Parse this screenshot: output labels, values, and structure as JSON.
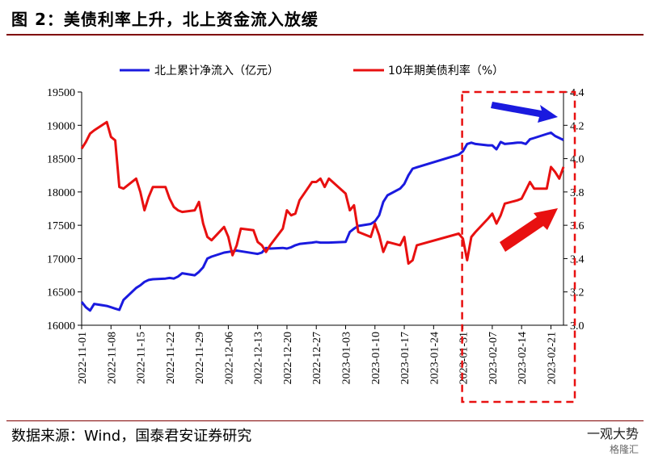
{
  "header": {
    "title": "图 2：美债利率上升，北上资金流入放缓"
  },
  "footer": {
    "source": "数据来源：Wind，国泰君安证券研究",
    "brand": "一观大势",
    "brand2": "格隆汇"
  },
  "colors": {
    "north": "#1a1adf",
    "yield": "#e81010",
    "highlight": "#e81010",
    "arrow_blue": "#1a1adf",
    "arrow_red": "#e81010"
  },
  "chart_data": {
    "type": "line",
    "legend": [
      "北上累计净流入（亿元）",
      "10年期美债利率（%）"
    ],
    "legend_position": "top",
    "x_ticks": [
      "2022-11-01",
      "2022-11-08",
      "2022-11-15",
      "2022-11-22",
      "2022-11-29",
      "2022-12-06",
      "2022-12-13",
      "2022-12-20",
      "2022-12-27",
      "2023-01-03",
      "2023-01-10",
      "2023-01-17",
      "2023-01-24",
      "2023-01-31",
      "2023-02-07",
      "2023-02-14",
      "2023-02-21"
    ],
    "y_left": {
      "min": 16000,
      "max": 19500,
      "ticks": [
        "16000",
        "16500",
        "17000",
        "17500",
        "18000",
        "18500",
        "19000",
        "19500"
      ]
    },
    "y_right": {
      "min": 3.0,
      "max": 4.4,
      "ticks": [
        "3.0",
        "3.2",
        "3.4",
        "3.6",
        "3.8",
        "4.0",
        "4.2",
        "4.4"
      ]
    },
    "grid": false,
    "series": [
      {
        "name": "北上累计净流入（亿元）",
        "axis": "left",
        "points": [
          [
            "2022-11-01",
            16350
          ],
          [
            "2022-11-02",
            16270
          ],
          [
            "2022-11-03",
            16220
          ],
          [
            "2022-11-04",
            16320
          ],
          [
            "2022-11-07",
            16290
          ],
          [
            "2022-11-08",
            16270
          ],
          [
            "2022-11-09",
            16250
          ],
          [
            "2022-11-10",
            16230
          ],
          [
            "2022-11-11",
            16380
          ],
          [
            "2022-11-14",
            16560
          ],
          [
            "2022-11-15",
            16600
          ],
          [
            "2022-11-16",
            16650
          ],
          [
            "2022-11-17",
            16680
          ],
          [
            "2022-11-18",
            16690
          ],
          [
            "2022-11-21",
            16700
          ],
          [
            "2022-11-22",
            16710
          ],
          [
            "2022-11-23",
            16700
          ],
          [
            "2022-11-24",
            16730
          ],
          [
            "2022-11-25",
            16780
          ],
          [
            "2022-11-28",
            16750
          ],
          [
            "2022-11-29",
            16800
          ],
          [
            "2022-11-30",
            16870
          ],
          [
            "2022-12-01",
            17000
          ],
          [
            "2022-12-02",
            17030
          ],
          [
            "2022-12-05",
            17090
          ],
          [
            "2022-12-06",
            17100
          ],
          [
            "2022-12-07",
            17110
          ],
          [
            "2022-12-08",
            17120
          ],
          [
            "2022-12-09",
            17110
          ],
          [
            "2022-12-12",
            17080
          ],
          [
            "2022-12-13",
            17070
          ],
          [
            "2022-12-14",
            17090
          ],
          [
            "2022-12-15",
            17160
          ],
          [
            "2022-12-16",
            17150
          ],
          [
            "2022-12-19",
            17160
          ],
          [
            "2022-12-20",
            17150
          ],
          [
            "2022-12-21",
            17170
          ],
          [
            "2022-12-22",
            17200
          ],
          [
            "2022-12-23",
            17220
          ],
          [
            "2022-12-26",
            17240
          ],
          [
            "2022-12-27",
            17250
          ],
          [
            "2022-12-28",
            17240
          ],
          [
            "2022-12-29",
            17240
          ],
          [
            "2022-12-30",
            17240
          ],
          [
            "2023-01-03",
            17250
          ],
          [
            "2023-01-04",
            17400
          ],
          [
            "2023-01-05",
            17450
          ],
          [
            "2023-01-06",
            17490
          ],
          [
            "2023-01-09",
            17520
          ],
          [
            "2023-01-10",
            17560
          ],
          [
            "2023-01-11",
            17650
          ],
          [
            "2023-01-12",
            17850
          ],
          [
            "2023-01-13",
            17950
          ],
          [
            "2023-01-16",
            18050
          ],
          [
            "2023-01-17",
            18120
          ],
          [
            "2023-01-18",
            18250
          ],
          [
            "2023-01-19",
            18350
          ],
          [
            "2023-01-20",
            18370
          ],
          [
            "2023-01-30",
            18560
          ],
          [
            "2023-01-31",
            18610
          ],
          [
            "2023-02-01",
            18720
          ],
          [
            "2023-02-02",
            18740
          ],
          [
            "2023-02-03",
            18720
          ],
          [
            "2023-02-06",
            18700
          ],
          [
            "2023-02-07",
            18700
          ],
          [
            "2023-02-08",
            18640
          ],
          [
            "2023-02-09",
            18750
          ],
          [
            "2023-02-10",
            18720
          ],
          [
            "2023-02-13",
            18740
          ],
          [
            "2023-02-14",
            18740
          ],
          [
            "2023-02-15",
            18720
          ],
          [
            "2023-02-16",
            18790
          ],
          [
            "2023-02-17",
            18810
          ],
          [
            "2023-02-20",
            18870
          ],
          [
            "2023-02-21",
            18890
          ],
          [
            "2023-02-22",
            18840
          ],
          [
            "2023-02-23",
            18810
          ],
          [
            "2023-02-24",
            18780
          ]
        ]
      },
      {
        "name": "10年期美债利率（%）",
        "axis": "right",
        "points": [
          [
            "2022-11-01",
            4.06
          ],
          [
            "2022-11-02",
            4.1
          ],
          [
            "2022-11-03",
            4.15
          ],
          [
            "2022-11-04",
            4.17
          ],
          [
            "2022-11-07",
            4.22
          ],
          [
            "2022-11-08",
            4.13
          ],
          [
            "2022-11-09",
            4.11
          ],
          [
            "2022-11-10",
            3.83
          ],
          [
            "2022-11-11",
            3.82
          ],
          [
            "2022-11-14",
            3.88
          ],
          [
            "2022-11-15",
            3.8
          ],
          [
            "2022-11-16",
            3.69
          ],
          [
            "2022-11-17",
            3.77
          ],
          [
            "2022-11-18",
            3.83
          ],
          [
            "2022-11-21",
            3.83
          ],
          [
            "2022-11-22",
            3.76
          ],
          [
            "2022-11-23",
            3.71
          ],
          [
            "2022-11-24",
            3.69
          ],
          [
            "2022-11-25",
            3.68
          ],
          [
            "2022-11-28",
            3.69
          ],
          [
            "2022-11-29",
            3.74
          ],
          [
            "2022-11-30",
            3.61
          ],
          [
            "2022-12-01",
            3.53
          ],
          [
            "2022-12-02",
            3.51
          ],
          [
            "2022-12-05",
            3.59
          ],
          [
            "2022-12-06",
            3.53
          ],
          [
            "2022-12-07",
            3.42
          ],
          [
            "2022-12-08",
            3.48
          ],
          [
            "2022-12-09",
            3.58
          ],
          [
            "2022-12-12",
            3.57
          ],
          [
            "2022-12-13",
            3.5
          ],
          [
            "2022-12-14",
            3.48
          ],
          [
            "2022-12-15",
            3.44
          ],
          [
            "2022-12-16",
            3.48
          ],
          [
            "2022-12-19",
            3.58
          ],
          [
            "2022-12-20",
            3.69
          ],
          [
            "2022-12-21",
            3.66
          ],
          [
            "2022-12-22",
            3.67
          ],
          [
            "2022-12-23",
            3.75
          ],
          [
            "2022-12-26",
            3.86
          ],
          [
            "2022-12-27",
            3.86
          ],
          [
            "2022-12-28",
            3.88
          ],
          [
            "2022-12-29",
            3.83
          ],
          [
            "2022-12-30",
            3.88
          ],
          [
            "2023-01-03",
            3.79
          ],
          [
            "2023-01-04",
            3.69
          ],
          [
            "2023-01-05",
            3.72
          ],
          [
            "2023-01-06",
            3.56
          ],
          [
            "2023-01-09",
            3.53
          ],
          [
            "2023-01-10",
            3.61
          ],
          [
            "2023-01-11",
            3.54
          ],
          [
            "2023-01-12",
            3.44
          ],
          [
            "2023-01-13",
            3.5
          ],
          [
            "2023-01-16",
            3.48
          ],
          [
            "2023-01-17",
            3.53
          ],
          [
            "2023-01-18",
            3.37
          ],
          [
            "2023-01-19",
            3.39
          ],
          [
            "2023-01-20",
            3.48
          ],
          [
            "2023-01-30",
            3.55
          ],
          [
            "2023-01-31",
            3.52
          ],
          [
            "2023-02-01",
            3.39
          ],
          [
            "2023-02-02",
            3.53
          ],
          [
            "2023-02-03",
            3.56
          ],
          [
            "2023-02-06",
            3.64
          ],
          [
            "2023-02-07",
            3.67
          ],
          [
            "2023-02-08",
            3.61
          ],
          [
            "2023-02-09",
            3.66
          ],
          [
            "2023-02-10",
            3.73
          ],
          [
            "2023-02-13",
            3.75
          ],
          [
            "2023-02-14",
            3.76
          ],
          [
            "2023-02-15",
            3.81
          ],
          [
            "2023-02-16",
            3.86
          ],
          [
            "2023-02-17",
            3.82
          ],
          [
            "2023-02-20",
            3.82
          ],
          [
            "2023-02-21",
            3.95
          ],
          [
            "2023-02-22",
            3.92
          ],
          [
            "2023-02-23",
            3.88
          ],
          [
            "2023-02-24",
            3.95
          ]
        ]
      }
    ],
    "annotations": [
      {
        "kind": "dashed-box",
        "from": "2023-01-31",
        "to": "2023-02-24"
      },
      {
        "kind": "arrow",
        "color": "blue",
        "direction": "right"
      },
      {
        "kind": "arrow",
        "color": "red",
        "direction": "up-right"
      }
    ]
  }
}
